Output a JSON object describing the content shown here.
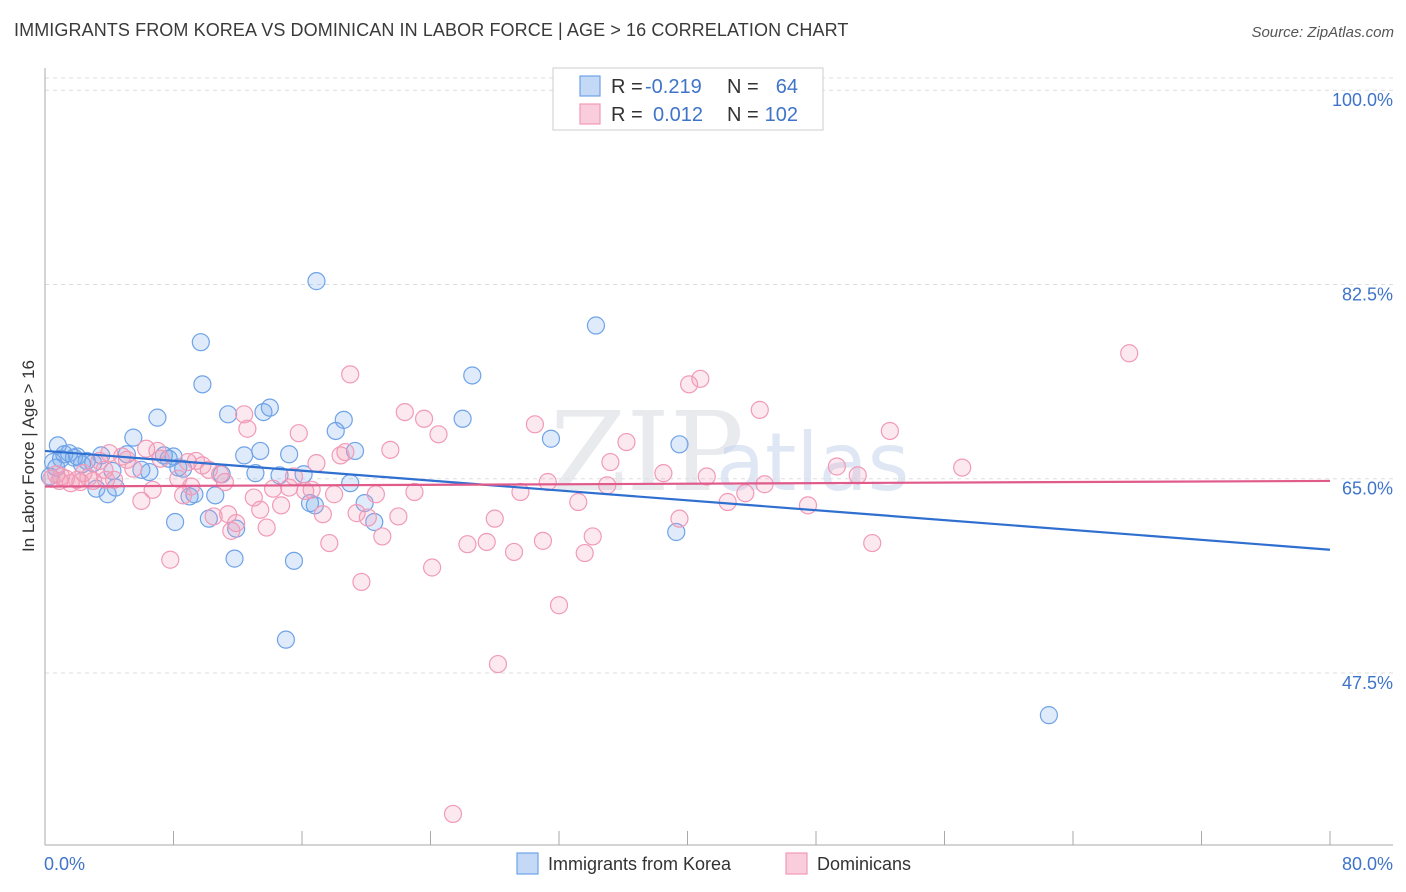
{
  "title": "IMMIGRANTS FROM KOREA VS DOMINICAN IN LABOR FORCE | AGE > 16 CORRELATION CHART",
  "source": "Source: ZipAtlas.com",
  "watermark": {
    "zip": "ZIP",
    "atlas": "atlas"
  },
  "colors": {
    "korea": "#6fa3e8",
    "korea_line": "#2f6fd0",
    "dominican": "#f19ab8",
    "dominican_line": "#e05a8a",
    "tick_text": "#3f74c8",
    "grid": "#dddddd"
  },
  "legend": {
    "rows": [
      {
        "r_label": "R =",
        "r_value": "-0.219",
        "n_label": "N =",
        "n_value": "64"
      },
      {
        "r_label": "R =",
        "r_value": "0.012",
        "n_label": "N =",
        "n_value": "102"
      }
    ]
  },
  "chart_data": {
    "type": "scatter",
    "title": "IMMIGRANTS FROM KOREA VS DOMINICAN IN LABOR FORCE | AGE > 16 CORRELATION CHART",
    "xlabel": "",
    "ylabel": "In Labor Force | Age > 16",
    "xlim": [
      0,
      80
    ],
    "ylim": [
      32,
      102
    ],
    "x_tick_labels": [
      "0.0%",
      "80.0%"
    ],
    "y_ticks": [
      47.5,
      65.0,
      82.5,
      100.0
    ],
    "y_tick_labels": [
      "47.5%",
      "65.0%",
      "82.5%",
      "100.0%"
    ],
    "grid": true,
    "legend_position": "top-center",
    "series": [
      {
        "name": "Immigrants from Korea",
        "trend": {
          "x": [
            0,
            80
          ],
          "y": [
            67.5,
            58.6
          ]
        },
        "points": [
          [
            0.3,
            65.2
          ],
          [
            0.5,
            66.5
          ],
          [
            0.8,
            68.0
          ],
          [
            1.0,
            66.8
          ],
          [
            1.2,
            67.2
          ],
          [
            1.5,
            67.3
          ],
          [
            1.8,
            66.9
          ],
          [
            2.0,
            67.0
          ],
          [
            2.3,
            66.3
          ],
          [
            2.6,
            66.6
          ],
          [
            3.0,
            66.4
          ],
          [
            3.2,
            64.1
          ],
          [
            3.5,
            67.1
          ],
          [
            3.9,
            63.6
          ],
          [
            4.2,
            65.7
          ],
          [
            4.4,
            64.2
          ],
          [
            5.1,
            67.2
          ],
          [
            5.5,
            68.7
          ],
          [
            6.0,
            65.8
          ],
          [
            6.5,
            65.6
          ],
          [
            7.0,
            70.5
          ],
          [
            7.4,
            67.1
          ],
          [
            7.7,
            66.8
          ],
          [
            8.0,
            67.0
          ],
          [
            8.1,
            61.1
          ],
          [
            8.3,
            66.0
          ],
          [
            8.6,
            65.9
          ],
          [
            9.0,
            63.4
          ],
          [
            9.3,
            63.6
          ],
          [
            9.7,
            77.3
          ],
          [
            9.8,
            73.5
          ],
          [
            10.2,
            61.4
          ],
          [
            10.6,
            63.5
          ],
          [
            11.0,
            65.4
          ],
          [
            11.4,
            70.8
          ],
          [
            11.8,
            57.8
          ],
          [
            11.9,
            60.5
          ],
          [
            12.4,
            67.1
          ],
          [
            13.1,
            65.5
          ],
          [
            13.4,
            67.5
          ],
          [
            13.6,
            71.0
          ],
          [
            14.0,
            71.4
          ],
          [
            14.6,
            65.3
          ],
          [
            15.2,
            67.2
          ],
          [
            15.5,
            57.6
          ],
          [
            16.1,
            65.4
          ],
          [
            15.0,
            50.5
          ],
          [
            16.5,
            62.8
          ],
          [
            16.8,
            62.6
          ],
          [
            16.9,
            82.8
          ],
          [
            18.1,
            69.3
          ],
          [
            18.6,
            70.3
          ],
          [
            19.0,
            64.6
          ],
          [
            19.3,
            67.5
          ],
          [
            19.9,
            62.8
          ],
          [
            20.5,
            61.1
          ],
          [
            26.6,
            74.3
          ],
          [
            26.0,
            70.4
          ],
          [
            31.5,
            68.6
          ],
          [
            34.3,
            78.8
          ],
          [
            39.3,
            60.2
          ],
          [
            39.5,
            68.1
          ],
          [
            62.5,
            43.7
          ],
          [
            0.7,
            66.0
          ]
        ]
      },
      {
        "name": "Dominicans",
        "trend": {
          "x": [
            0,
            80
          ],
          "y": [
            64.3,
            64.8
          ]
        },
        "points": [
          [
            0.4,
            65.0
          ],
          [
            0.7,
            65.4
          ],
          [
            1.0,
            65.2
          ],
          [
            1.3,
            65.0
          ],
          [
            1.6,
            64.6
          ],
          [
            2.0,
            64.9
          ],
          [
            2.4,
            65.5
          ],
          [
            2.7,
            65.1
          ],
          [
            3.0,
            64.8
          ],
          [
            3.4,
            66.6
          ],
          [
            3.7,
            65.8
          ],
          [
            4.0,
            67.3
          ],
          [
            4.3,
            64.9
          ],
          [
            4.8,
            67.0
          ],
          [
            5.1,
            66.7
          ],
          [
            5.5,
            65.9
          ],
          [
            6.0,
            63.0
          ],
          [
            6.3,
            67.7
          ],
          [
            6.7,
            64.0
          ],
          [
            7.0,
            67.5
          ],
          [
            7.2,
            66.8
          ],
          [
            7.8,
            57.7
          ],
          [
            8.3,
            65.0
          ],
          [
            8.6,
            63.5
          ],
          [
            8.9,
            66.5
          ],
          [
            9.1,
            64.3
          ],
          [
            9.4,
            66.6
          ],
          [
            9.8,
            66.2
          ],
          [
            10.2,
            65.8
          ],
          [
            10.5,
            61.6
          ],
          [
            10.9,
            65.4
          ],
          [
            11.2,
            64.7
          ],
          [
            11.4,
            61.8
          ],
          [
            11.6,
            60.3
          ],
          [
            11.9,
            61.0
          ],
          [
            12.4,
            70.8
          ],
          [
            12.6,
            69.5
          ],
          [
            13.0,
            63.3
          ],
          [
            13.4,
            62.2
          ],
          [
            13.8,
            60.6
          ],
          [
            14.2,
            64.1
          ],
          [
            14.7,
            62.6
          ],
          [
            15.2,
            64.2
          ],
          [
            15.5,
            65.2
          ],
          [
            15.8,
            69.1
          ],
          [
            16.2,
            63.9
          ],
          [
            16.6,
            64.0
          ],
          [
            16.9,
            66.4
          ],
          [
            17.3,
            61.8
          ],
          [
            17.7,
            59.2
          ],
          [
            18.0,
            63.6
          ],
          [
            18.4,
            67.1
          ],
          [
            18.7,
            67.4
          ],
          [
            19.0,
            74.4
          ],
          [
            19.4,
            61.9
          ],
          [
            19.7,
            55.7
          ],
          [
            20.1,
            61.5
          ],
          [
            20.6,
            63.6
          ],
          [
            21.0,
            59.8
          ],
          [
            21.5,
            67.6
          ],
          [
            22.0,
            61.6
          ],
          [
            22.4,
            71.0
          ],
          [
            23.0,
            63.8
          ],
          [
            23.6,
            70.4
          ],
          [
            24.1,
            57.0
          ],
          [
            24.5,
            69.0
          ],
          [
            25.4,
            34.8
          ],
          [
            26.3,
            59.1
          ],
          [
            27.5,
            59.3
          ],
          [
            28.0,
            61.4
          ],
          [
            28.2,
            48.3
          ],
          [
            29.2,
            58.4
          ],
          [
            29.6,
            63.8
          ],
          [
            30.5,
            69.9
          ],
          [
            31.0,
            59.4
          ],
          [
            31.3,
            64.7
          ],
          [
            32.0,
            53.6
          ],
          [
            33.2,
            62.9
          ],
          [
            33.6,
            58.3
          ],
          [
            34.1,
            59.8
          ],
          [
            35.0,
            64.4
          ],
          [
            35.2,
            66.5
          ],
          [
            36.2,
            68.3
          ],
          [
            38.5,
            65.5
          ],
          [
            39.5,
            61.4
          ],
          [
            40.1,
            73.5
          ],
          [
            40.8,
            74.0
          ],
          [
            41.2,
            65.2
          ],
          [
            42.5,
            62.9
          ],
          [
            43.6,
            63.7
          ],
          [
            44.5,
            71.2
          ],
          [
            44.8,
            64.5
          ],
          [
            47.5,
            62.6
          ],
          [
            49.3,
            66.1
          ],
          [
            50.6,
            65.3
          ],
          [
            51.5,
            59.2
          ],
          [
            52.6,
            69.3
          ],
          [
            57.1,
            66.0
          ],
          [
            67.5,
            76.3
          ],
          [
            0.9,
            64.8
          ],
          [
            3.8,
            64.9
          ],
          [
            2.2,
            64.7
          ]
        ]
      }
    ]
  },
  "bottom_legend": [
    {
      "label": "Immigrants from Korea"
    },
    {
      "label": "Dominicans"
    }
  ]
}
